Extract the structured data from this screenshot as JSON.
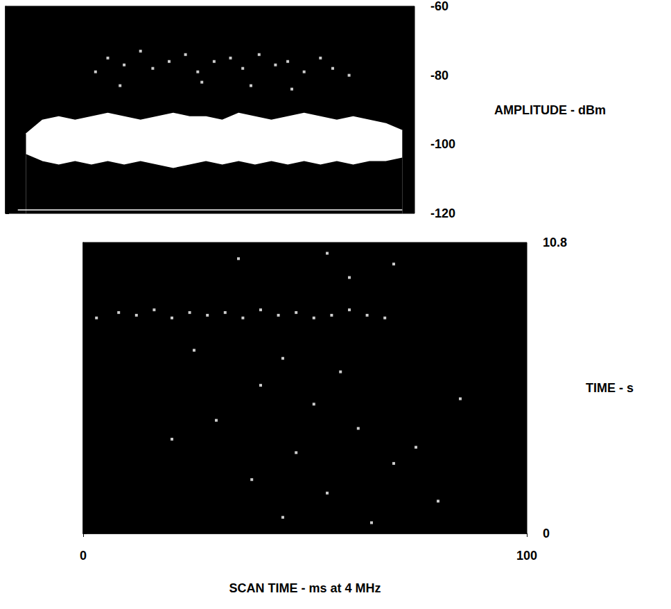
{
  "chart_data": [
    {
      "type": "line",
      "ylabel": "AMPLITUDE - dBm",
      "xlim": [
        0,
        100
      ],
      "xticks": [],
      "ylim": [
        -120,
        -60
      ],
      "yticks": [
        -120,
        -100,
        -80,
        -60
      ],
      "tick_labels": "y",
      "grid": false,
      "series": [
        {
          "type": "area",
          "color": "#ffffff",
          "x": [
            5,
            9,
            13,
            17,
            21,
            25,
            29,
            33,
            37,
            41,
            45,
            49,
            53,
            57,
            61,
            65,
            69,
            73,
            77,
            81,
            85,
            89,
            93,
            97
          ],
          "values": [
            -97,
            -93,
            -92,
            -93,
            -92,
            -91,
            -92,
            -93,
            -92,
            -91,
            -92,
            -92,
            -93,
            -91,
            -92,
            -93,
            -92,
            -91,
            -92,
            -93,
            -92,
            -93,
            -94,
            -96
          ]
        },
        {
          "type": "area",
          "color": "#000000",
          "x": [
            5,
            9,
            13,
            17,
            21,
            25,
            29,
            33,
            37,
            41,
            45,
            49,
            53,
            57,
            61,
            65,
            69,
            73,
            77,
            81,
            85,
            89,
            93,
            97
          ],
          "values": [
            -103,
            -105,
            -106,
            -105,
            -106,
            -105,
            -106,
            -105,
            -106,
            -107,
            -106,
            -105,
            -106,
            -105,
            -106,
            -105,
            -106,
            -105,
            -106,
            -105,
            -106,
            -105,
            -105,
            -104
          ]
        },
        {
          "type": "line",
          "color": "#ffffff",
          "x": [
            3,
            97
          ],
          "values": [
            -119,
            -119
          ]
        },
        {
          "type": "scatter",
          "color": "#ffffff",
          "x": [
            22,
            25,
            29,
            33,
            36,
            40,
            44,
            47,
            51,
            55,
            58,
            62,
            66,
            69,
            73,
            77,
            80,
            84,
            28,
            48,
            60,
            70
          ],
          "values": [
            -79,
            -75,
            -77,
            -73,
            -78,
            -76,
            -74,
            -79,
            -76,
            -75,
            -78,
            -74,
            -77,
            -76,
            -79,
            -75,
            -78,
            -80,
            -83,
            -82,
            -83,
            -84
          ]
        }
      ]
    },
    {
      "type": "scatter",
      "xlabel": "SCAN TIME - ms at 4 MHz",
      "ylabel": "TIME - s",
      "xlim": [
        0,
        100
      ],
      "xticks": [
        0,
        100
      ],
      "ylim": [
        0,
        10.8
      ],
      "yticks": [
        0,
        10.8
      ],
      "grid": false,
      "color": "#ffffff",
      "x": [
        3,
        8,
        12,
        16,
        20,
        24,
        28,
        32,
        36,
        40,
        44,
        48,
        52,
        56,
        60,
        64,
        68,
        35,
        55,
        70,
        60,
        25,
        45,
        40,
        52,
        30,
        62,
        48,
        70,
        38,
        55,
        80,
        45,
        65,
        75,
        85,
        20,
        58
      ],
      "values": [
        8.0,
        8.2,
        8.1,
        8.3,
        8.0,
        8.2,
        8.1,
        8.2,
        8.0,
        8.3,
        8.1,
        8.2,
        8.0,
        8.1,
        8.3,
        8.1,
        8.0,
        10.2,
        10.4,
        10.0,
        9.5,
        6.8,
        6.5,
        5.5,
        4.8,
        4.2,
        3.9,
        3.0,
        2.6,
        2.0,
        1.5,
        1.2,
        0.6,
        0.4,
        3.2,
        5.0,
        3.5,
        6.0
      ]
    }
  ]
}
